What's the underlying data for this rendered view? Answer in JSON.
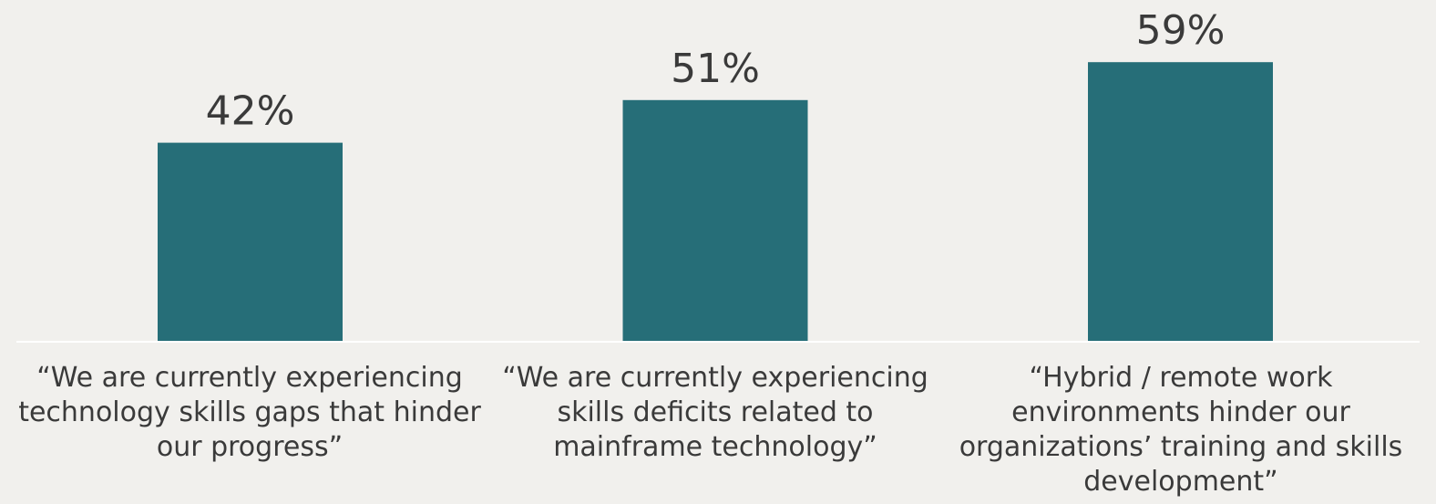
{
  "chart_data": {
    "type": "bar",
    "categories": [
      "“We are currently experiencing\ntechnology skills gaps that hinder\nour progress”",
      "“We are currently experiencing\nskills deficits related to\nmainframe technology”",
      "“Hybrid / remote work\nenvironments hinder our\norganizations’ training and skills\ndevelopment”"
    ],
    "values": [
      42,
      51,
      59
    ],
    "value_labels": [
      "42%",
      "51%",
      "59%"
    ],
    "unit": "%",
    "ylim": [
      0,
      100
    ],
    "grid": false,
    "legend": "none",
    "bar_color": "#266e78",
    "baseline_color": "#ffffff"
  }
}
